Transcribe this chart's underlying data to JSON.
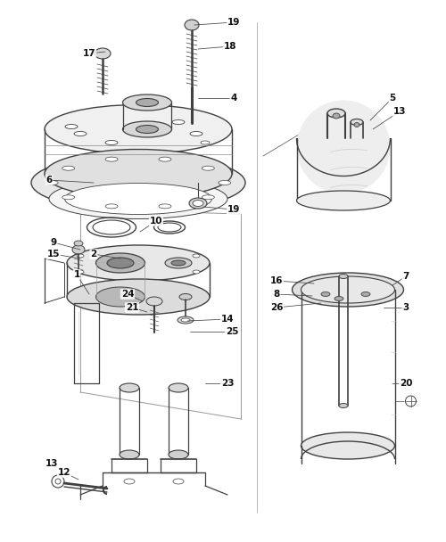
{
  "bg_color": "#ffffff",
  "line_color": "#404040",
  "figsize": [
    5.0,
    6.08
  ],
  "dpi": 100
}
